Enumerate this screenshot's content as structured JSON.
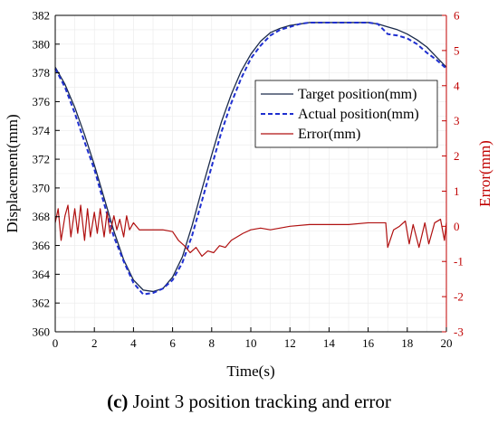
{
  "caption": {
    "label": "(c)",
    "text": "Joint 3 position tracking and error"
  },
  "chart_data": {
    "type": "line",
    "title": "",
    "xlabel": "Time(s)",
    "ylabel": "Displacement(mm)",
    "y2label": "Error(mm)",
    "xlim": [
      0,
      20
    ],
    "ylim": [
      360,
      382
    ],
    "y2lim": [
      -3,
      6
    ],
    "xticks": [
      0,
      2,
      4,
      6,
      8,
      10,
      12,
      14,
      16,
      18,
      20
    ],
    "yticks": [
      360,
      362,
      364,
      366,
      368,
      370,
      372,
      374,
      376,
      378,
      380,
      382
    ],
    "y2ticks": [
      -3,
      -2,
      -1,
      0,
      1,
      2,
      3,
      4,
      5,
      6
    ],
    "legend_position": "center-right",
    "colors": {
      "target": "#1a2a4a",
      "actual": "#1f2fd0",
      "error": "#b01010",
      "right_axis": "#c00000"
    },
    "series": [
      {
        "name": "Target position(mm)",
        "axis": "left",
        "style": "solid",
        "x": [
          0,
          0.5,
          1,
          1.5,
          2,
          2.5,
          3,
          3.5,
          4,
          4.5,
          5,
          5.5,
          6,
          6.5,
          7,
          7.5,
          8,
          8.5,
          9,
          9.5,
          10,
          10.5,
          11,
          11.5,
          12,
          12.5,
          13,
          13.5,
          14,
          14.5,
          15,
          15.5,
          16,
          16.5,
          17,
          17.5,
          18,
          18.5,
          19,
          19.5,
          20
        ],
        "values": [
          378.4,
          377.2,
          375.6,
          373.7,
          371.6,
          369.3,
          367.0,
          365.0,
          363.6,
          362.9,
          362.8,
          363.0,
          363.8,
          365.2,
          367.4,
          369.9,
          372.3,
          374.6,
          376.5,
          378.1,
          379.3,
          380.2,
          380.8,
          381.1,
          381.3,
          381.4,
          381.5,
          381.5,
          381.5,
          381.5,
          381.5,
          381.5,
          381.5,
          381.4,
          381.2,
          381.0,
          380.7,
          380.3,
          379.8,
          379.1,
          378.4
        ]
      },
      {
        "name": "Actual position(mm)",
        "axis": "left",
        "style": "dashed",
        "x": [
          0,
          0.5,
          1,
          1.5,
          2,
          2.5,
          3,
          3.5,
          4,
          4.5,
          5,
          5.5,
          6,
          6.5,
          7,
          7.5,
          8,
          8.5,
          9,
          9.5,
          10,
          10.5,
          11,
          11.5,
          12,
          12.5,
          13,
          13.5,
          14,
          14.5,
          15,
          15.5,
          16,
          16.5,
          17,
          17.5,
          18,
          18.5,
          19,
          19.5,
          20
        ],
        "values": [
          378.3,
          377.0,
          375.2,
          373.2,
          371.3,
          368.9,
          366.6,
          364.9,
          363.4,
          362.6,
          362.7,
          363.0,
          363.6,
          364.8,
          366.7,
          369.1,
          371.5,
          373.9,
          375.9,
          377.6,
          379.0,
          379.9,
          380.6,
          381.0,
          381.2,
          381.4,
          381.5,
          381.5,
          381.5,
          381.5,
          381.5,
          381.5,
          381.5,
          381.4,
          380.7,
          380.6,
          380.4,
          380.0,
          379.4,
          378.9,
          378.3
        ]
      },
      {
        "name": "Error(mm)",
        "axis": "right",
        "style": "solid",
        "x": [
          0,
          0.15,
          0.3,
          0.5,
          0.65,
          0.8,
          1.0,
          1.15,
          1.3,
          1.5,
          1.65,
          1.8,
          2.0,
          2.15,
          2.3,
          2.5,
          2.65,
          2.8,
          3.0,
          3.15,
          3.3,
          3.5,
          3.65,
          3.8,
          4.0,
          4.15,
          4.3,
          4.5,
          5.0,
          5.5,
          6.0,
          6.3,
          6.6,
          6.9,
          7.2,
          7.5,
          7.8,
          8.1,
          8.4,
          8.7,
          9.0,
          9.3,
          9.6,
          10.0,
          10.5,
          11.0,
          12.0,
          13.0,
          14.0,
          15.0,
          16.0,
          16.5,
          16.9,
          17.0,
          17.3,
          17.6,
          17.9,
          18.1,
          18.3,
          18.6,
          18.9,
          19.1,
          19.4,
          19.7,
          19.9,
          20.0
        ],
        "values": [
          0.1,
          0.5,
          -0.4,
          0.3,
          0.6,
          -0.3,
          0.5,
          -0.2,
          0.6,
          -0.4,
          0.5,
          -0.3,
          0.4,
          -0.2,
          0.5,
          -0.3,
          0.4,
          -0.2,
          0.3,
          -0.1,
          0.2,
          -0.3,
          0.3,
          -0.1,
          0.1,
          0.0,
          -0.1,
          -0.1,
          -0.1,
          -0.1,
          -0.15,
          -0.4,
          -0.55,
          -0.75,
          -0.6,
          -0.85,
          -0.7,
          -0.75,
          -0.55,
          -0.6,
          -0.4,
          -0.3,
          -0.2,
          -0.1,
          -0.05,
          -0.1,
          0.0,
          0.05,
          0.05,
          0.05,
          0.1,
          0.1,
          0.1,
          -0.6,
          -0.1,
          0.0,
          0.15,
          -0.5,
          0.05,
          -0.6,
          0.1,
          -0.5,
          0.1,
          0.2,
          -0.4,
          0.1
        ]
      }
    ]
  }
}
